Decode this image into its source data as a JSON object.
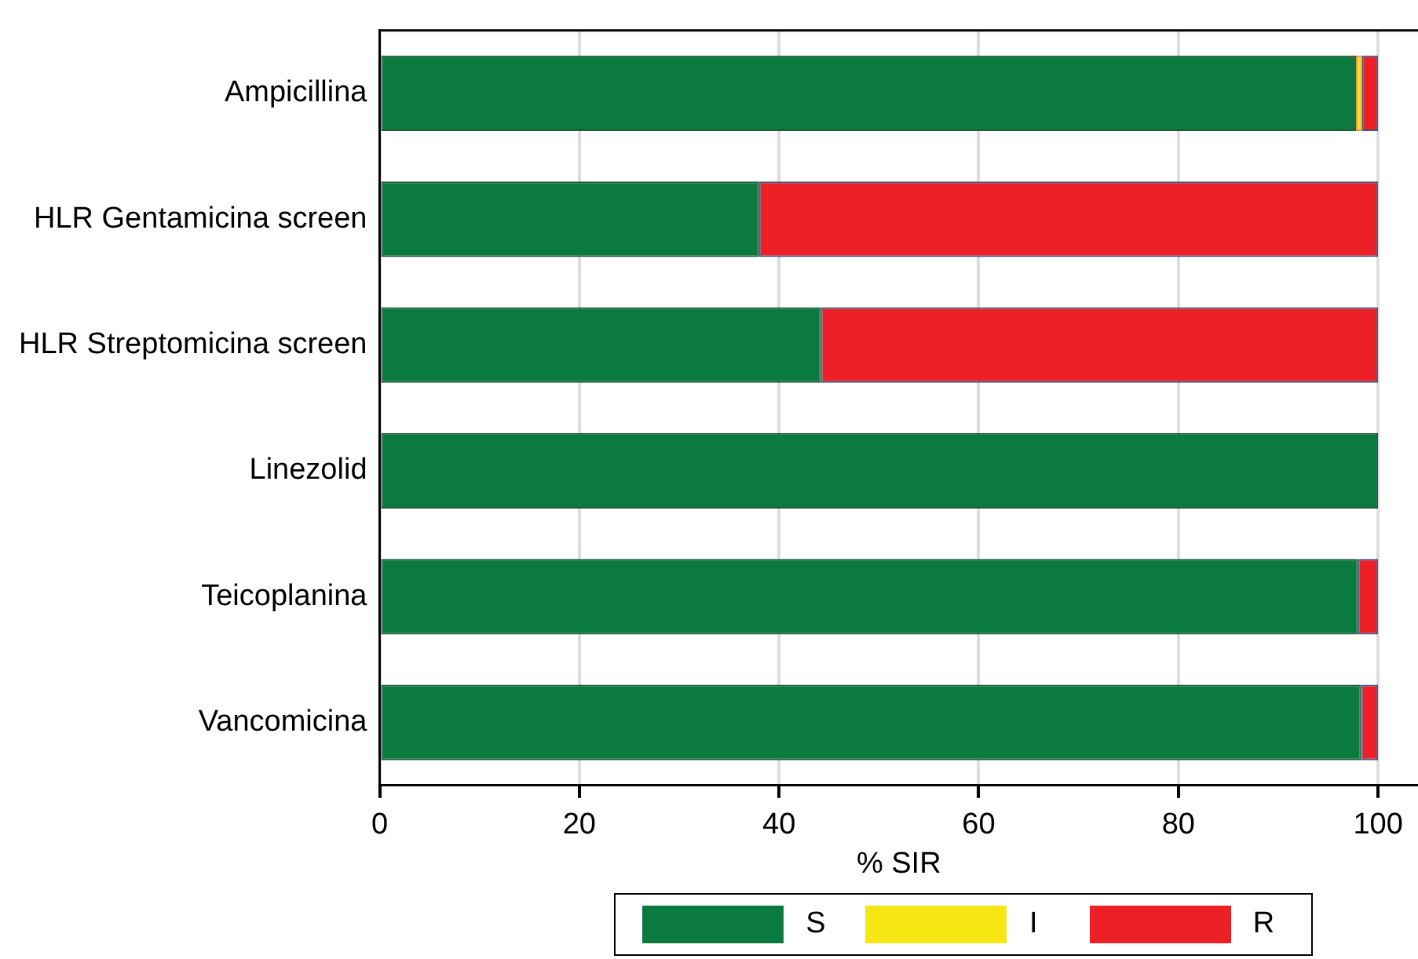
{
  "chart_data": {
    "type": "bar",
    "orientation": "horizontal",
    "stacked": true,
    "xlabel": "% SIR",
    "categories": [
      "Ampicillina",
      "HLR Gentamicina screen",
      "HLR Streptomicina screen",
      "Linezolid",
      "Teicoplanina",
      "Vancomicina"
    ],
    "series": [
      {
        "name": "S",
        "color": "#0b7a3e",
        "values": [
          97.8,
          38.0,
          44.2,
          100,
          98.0,
          98.3
        ]
      },
      {
        "name": "I",
        "color": "#f5e614",
        "values": [
          0.6,
          0,
          0,
          0,
          0,
          0
        ]
      },
      {
        "name": "R",
        "color": "#ee2027",
        "values": [
          1.6,
          62.0,
          55.8,
          0,
          2.0,
          1.7
        ]
      }
    ],
    "xlim": [
      0,
      104
    ],
    "xticks": [
      0,
      20,
      40,
      60,
      80,
      100
    ],
    "grid": "x",
    "legend": "bottom"
  }
}
